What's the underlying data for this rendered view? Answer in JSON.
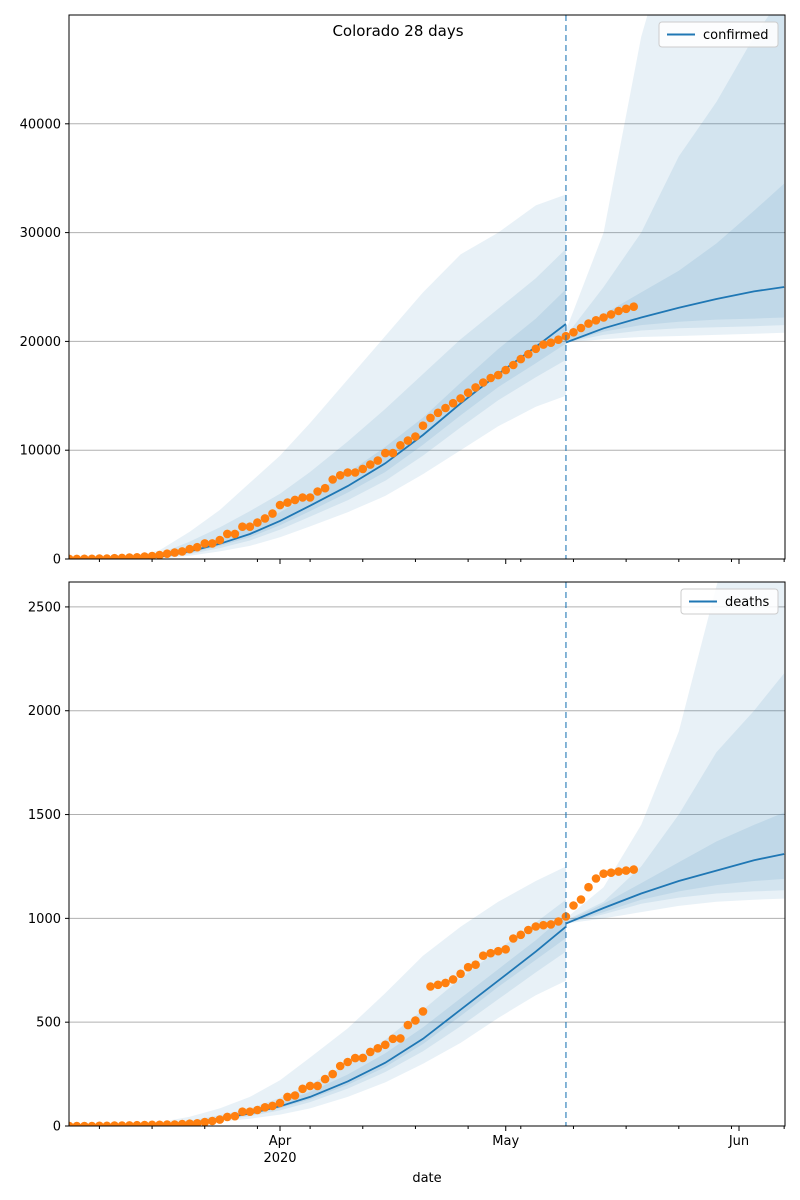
{
  "chart_data": [
    {
      "type": "line",
      "title": "Colorado 28 days",
      "xlabel": "",
      "ylabel": "",
      "ylim": [
        0,
        50000
      ],
      "yticks": [
        0,
        10000,
        20000,
        30000,
        40000
      ],
      "ytick_labels": [
        "0",
        "10000",
        "20000",
        "30000",
        "40000"
      ],
      "grid": "horizontal",
      "legend": {
        "placement": "top-right",
        "entries": [
          "confirmed"
        ]
      },
      "forecast_start": "2020-05-09",
      "colors": {
        "line": "#1f77b4",
        "points": "#ff7f0e",
        "band": "#1f77b4"
      },
      "fit": {
        "x": [
          "2020-03-01",
          "2020-03-12",
          "2020-03-16",
          "2020-03-20",
          "2020-03-24",
          "2020-03-28",
          "2020-04-01",
          "2020-04-05",
          "2020-04-10",
          "2020-04-15",
          "2020-04-20",
          "2020-04-25",
          "2020-04-30",
          "2020-05-05",
          "2020-05-09"
        ],
        "y": [
          0,
          0,
          200,
          700,
          1400,
          2300,
          3500,
          4900,
          6700,
          8800,
          11400,
          14300,
          17000,
          19500,
          21600
        ]
      },
      "forecast": {
        "x": [
          "2020-05-09",
          "2020-05-14",
          "2020-05-19",
          "2020-05-24",
          "2020-05-29",
          "2020-06-03",
          "2020-06-07"
        ],
        "y": [
          19900,
          21200,
          22200,
          23100,
          23900,
          24600,
          25000
        ]
      },
      "bands": [
        {
          "x": [
            "2020-03-01",
            "2020-03-12",
            "2020-03-16",
            "2020-03-20",
            "2020-03-24",
            "2020-03-28",
            "2020-04-01",
            "2020-04-05",
            "2020-04-10",
            "2020-04-15",
            "2020-04-20",
            "2020-04-25",
            "2020-04-30",
            "2020-05-05",
            "2020-05-09"
          ],
          "lo": [
            0,
            0,
            50,
            300,
            700,
            1200,
            2000,
            3000,
            4300,
            5800,
            7800,
            10000,
            12200,
            14000,
            15000
          ],
          "hi": [
            0,
            100,
            800,
            2500,
            4500,
            7000,
            9500,
            12500,
            16500,
            20500,
            24500,
            28000,
            30000,
            32500,
            33500
          ]
        },
        {
          "x": [
            "2020-03-01",
            "2020-03-12",
            "2020-03-16",
            "2020-03-20",
            "2020-03-24",
            "2020-03-28",
            "2020-04-01",
            "2020-04-05",
            "2020-04-10",
            "2020-04-15",
            "2020-04-20",
            "2020-04-25",
            "2020-04-30",
            "2020-05-05",
            "2020-05-09"
          ],
          "lo": [
            0,
            0,
            100,
            450,
            1000,
            1700,
            2700,
            3900,
            5400,
            7200,
            9500,
            12100,
            14600,
            16700,
            18300
          ],
          "hi": [
            0,
            50,
            500,
            1600,
            2900,
            4400,
            6000,
            8000,
            10800,
            13800,
            17000,
            20200,
            23000,
            25800,
            28500
          ]
        },
        {
          "x": [
            "2020-03-01",
            "2020-03-12",
            "2020-03-16",
            "2020-03-20",
            "2020-03-24",
            "2020-03-28",
            "2020-04-01",
            "2020-04-05",
            "2020-04-10",
            "2020-04-15",
            "2020-04-20",
            "2020-04-25",
            "2020-04-30",
            "2020-05-05",
            "2020-05-09"
          ],
          "lo": [
            0,
            0,
            150,
            550,
            1200,
            2000,
            3100,
            4400,
            6100,
            8000,
            10500,
            13200,
            15800,
            18000,
            19800
          ],
          "hi": [
            0,
            20,
            300,
            1000,
            1900,
            3000,
            4300,
            5900,
            7900,
            10300,
            13000,
            16200,
            19300,
            22100,
            24800
          ]
        },
        {
          "x": [
            "2020-05-09",
            "2020-05-14",
            "2020-05-19",
            "2020-05-24",
            "2020-05-29",
            "2020-06-03",
            "2020-06-07"
          ],
          "lo": [
            19900,
            20200,
            20400,
            20500,
            20600,
            20700,
            20800
          ],
          "hi": [
            21000,
            30000,
            48000,
            60000,
            70000,
            80000,
            85000
          ]
        },
        {
          "x": [
            "2020-05-09",
            "2020-05-14",
            "2020-05-19",
            "2020-05-24",
            "2020-05-29",
            "2020-06-03",
            "2020-06-07"
          ],
          "lo": [
            19900,
            20600,
            21000,
            21200,
            21300,
            21400,
            21500
          ],
          "hi": [
            20500,
            25000,
            30000,
            37000,
            42000,
            48000,
            52000
          ]
        },
        {
          "x": [
            "2020-05-09",
            "2020-05-14",
            "2020-05-19",
            "2020-05-24",
            "2020-05-29",
            "2020-06-03",
            "2020-06-07"
          ],
          "lo": [
            19900,
            20900,
            21500,
            21800,
            22000,
            22100,
            22200
          ],
          "hi": [
            20200,
            22500,
            24500,
            26500,
            29000,
            32000,
            34500
          ]
        }
      ],
      "observed": {
        "x": [
          "2020-03-01",
          "2020-03-02",
          "2020-03-03",
          "2020-03-04",
          "2020-03-05",
          "2020-03-06",
          "2020-03-07",
          "2020-03-08",
          "2020-03-09",
          "2020-03-10",
          "2020-03-11",
          "2020-03-12",
          "2020-03-13",
          "2020-03-14",
          "2020-03-15",
          "2020-03-16",
          "2020-03-17",
          "2020-03-18",
          "2020-03-19",
          "2020-03-20",
          "2020-03-21",
          "2020-03-22",
          "2020-03-23",
          "2020-03-24",
          "2020-03-25",
          "2020-03-26",
          "2020-03-27",
          "2020-03-28",
          "2020-03-29",
          "2020-03-30",
          "2020-03-31",
          "2020-04-01",
          "2020-04-02",
          "2020-04-03",
          "2020-04-04",
          "2020-04-05",
          "2020-04-06",
          "2020-04-07",
          "2020-04-08",
          "2020-04-09",
          "2020-04-10",
          "2020-04-11",
          "2020-04-12",
          "2020-04-13",
          "2020-04-14",
          "2020-04-15",
          "2020-04-16",
          "2020-04-17",
          "2020-04-18",
          "2020-04-19",
          "2020-04-20",
          "2020-04-21",
          "2020-04-22",
          "2020-04-23",
          "2020-04-24",
          "2020-04-25",
          "2020-04-26",
          "2020-04-27",
          "2020-04-28",
          "2020-04-29",
          "2020-04-30",
          "2020-05-01",
          "2020-05-02",
          "2020-05-03",
          "2020-05-04",
          "2020-05-05",
          "2020-05-06",
          "2020-05-07",
          "2020-05-08",
          "2020-05-09",
          "2020-05-10",
          "2020-05-11",
          "2020-05-12",
          "2020-05-13",
          "2020-05-14",
          "2020-05-15",
          "2020-05-16",
          "2020-05-17",
          "2020-05-18"
        ],
        "y": [
          0,
          2,
          4,
          8,
          9,
          17,
          21,
          33,
          45,
          72,
          101,
          131,
          160,
          216,
          277,
          363,
          491,
          586,
          697,
          912,
          1086,
          1430,
          1433,
          1734,
          2307,
          2307,
          2966,
          2966,
          3342,
          3728,
          4173,
          4950,
          5183,
          5429,
          5655,
          5655,
          6202,
          6510,
          7303,
          7691,
          7950,
          7950,
          8280,
          8675,
          9047,
          9730,
          9730,
          10447,
          10878,
          11262,
          12256,
          12968,
          13441,
          13879,
          14316,
          14758,
          15284,
          15768,
          16225,
          16635,
          16907,
          17364,
          17830,
          18371,
          18827,
          19316,
          19703,
          19879,
          20157,
          20475,
          20838,
          21232,
          21633,
          21938,
          22200,
          22482,
          22797,
          23000,
          23191
        ]
      }
    },
    {
      "type": "line",
      "title": "",
      "xlabel": "date",
      "ylabel": "",
      "ylim": [
        0,
        2620
      ],
      "yticks": [
        0,
        500,
        1000,
        1500,
        2000,
        2500
      ],
      "ytick_labels": [
        "0",
        "500",
        "1000",
        "1500",
        "2000",
        "2500"
      ],
      "xticks": [
        "2020-04-01",
        "2020-05-01",
        "2020-06-01"
      ],
      "xtick_labels": [
        "Apr\n2020",
        "May",
        "Jun"
      ],
      "grid": "horizontal",
      "legend": {
        "placement": "top-right",
        "entries": [
          "deaths"
        ]
      },
      "forecast_start": "2020-05-09",
      "colors": {
        "line": "#1f77b4",
        "points": "#ff7f0e",
        "band": "#1f77b4"
      },
      "fit": {
        "x": [
          "2020-03-01",
          "2020-03-12",
          "2020-03-16",
          "2020-03-20",
          "2020-03-24",
          "2020-03-28",
          "2020-04-01",
          "2020-04-05",
          "2020-04-10",
          "2020-04-15",
          "2020-04-20",
          "2020-04-25",
          "2020-04-30",
          "2020-05-05",
          "2020-05-09"
        ],
        "y": [
          0,
          2,
          6,
          15,
          35,
          60,
          95,
          140,
          215,
          305,
          420,
          560,
          700,
          840,
          960
        ]
      },
      "forecast": {
        "x": [
          "2020-05-09",
          "2020-05-14",
          "2020-05-19",
          "2020-05-24",
          "2020-05-29",
          "2020-06-03",
          "2020-06-07"
        ],
        "y": [
          975,
          1050,
          1120,
          1180,
          1230,
          1280,
          1310
        ]
      },
      "bands": [
        {
          "x": [
            "2020-03-01",
            "2020-03-12",
            "2020-03-16",
            "2020-03-20",
            "2020-03-24",
            "2020-03-28",
            "2020-04-01",
            "2020-04-05",
            "2020-04-10",
            "2020-04-15",
            "2020-04-20",
            "2020-04-25",
            "2020-04-30",
            "2020-05-05",
            "2020-05-09"
          ],
          "lo": [
            0,
            0,
            2,
            8,
            20,
            35,
            55,
            85,
            140,
            210,
            300,
            400,
            520,
            630,
            700
          ],
          "hi": [
            0,
            5,
            18,
            45,
            85,
            140,
            220,
            330,
            470,
            640,
            820,
            960,
            1080,
            1180,
            1250
          ]
        },
        {
          "x": [
            "2020-03-01",
            "2020-03-12",
            "2020-03-16",
            "2020-03-20",
            "2020-03-24",
            "2020-03-28",
            "2020-04-01",
            "2020-04-05",
            "2020-04-10",
            "2020-04-15",
            "2020-04-20",
            "2020-04-25",
            "2020-04-30",
            "2020-05-05",
            "2020-05-09"
          ],
          "lo": [
            0,
            1,
            4,
            11,
            27,
            47,
            75,
            115,
            180,
            260,
            360,
            480,
            610,
            740,
            840
          ],
          "hi": [
            0,
            3,
            10,
            25,
            52,
            85,
            135,
            200,
            300,
            415,
            560,
            710,
            850,
            980,
            1090
          ]
        },
        {
          "x": [
            "2020-03-01",
            "2020-03-12",
            "2020-03-16",
            "2020-03-20",
            "2020-03-24",
            "2020-03-28",
            "2020-04-01",
            "2020-04-05",
            "2020-04-10",
            "2020-04-15",
            "2020-04-20",
            "2020-04-25",
            "2020-04-30",
            "2020-05-05",
            "2020-05-09"
          ],
          "lo": [
            0,
            1,
            5,
            13,
            31,
            54,
            86,
            128,
            198,
            284,
            395,
            530,
            670,
            800,
            905
          ],
          "hi": [
            0,
            2,
            8,
            19,
            42,
            70,
            112,
            165,
            248,
            350,
            475,
            615,
            755,
            895,
            1020
          ]
        },
        {
          "x": [
            "2020-05-09",
            "2020-05-14",
            "2020-05-19",
            "2020-05-24",
            "2020-05-29",
            "2020-06-03",
            "2020-06-07"
          ],
          "lo": [
            975,
            1000,
            1030,
            1060,
            1080,
            1090,
            1095
          ],
          "hi": [
            1000,
            1150,
            1450,
            1900,
            2600,
            3200,
            3600
          ]
        },
        {
          "x": [
            "2020-05-09",
            "2020-05-14",
            "2020-05-19",
            "2020-05-24",
            "2020-05-29",
            "2020-06-03",
            "2020-06-07"
          ],
          "lo": [
            975,
            1020,
            1070,
            1100,
            1120,
            1130,
            1135
          ],
          "hi": [
            990,
            1080,
            1250,
            1500,
            1800,
            2000,
            2180
          ]
        },
        {
          "x": [
            "2020-05-09",
            "2020-05-14",
            "2020-05-19",
            "2020-05-24",
            "2020-05-29",
            "2020-06-03",
            "2020-06-07"
          ],
          "lo": [
            975,
            1030,
            1090,
            1130,
            1160,
            1180,
            1190
          ],
          "hi": [
            985,
            1070,
            1170,
            1270,
            1370,
            1450,
            1510
          ]
        }
      ],
      "observed": {
        "x": [
          "2020-03-01",
          "2020-03-02",
          "2020-03-03",
          "2020-03-04",
          "2020-03-05",
          "2020-03-06",
          "2020-03-07",
          "2020-03-08",
          "2020-03-09",
          "2020-03-10",
          "2020-03-11",
          "2020-03-12",
          "2020-03-13",
          "2020-03-14",
          "2020-03-15",
          "2020-03-16",
          "2020-03-17",
          "2020-03-18",
          "2020-03-19",
          "2020-03-20",
          "2020-03-21",
          "2020-03-22",
          "2020-03-23",
          "2020-03-24",
          "2020-03-25",
          "2020-03-26",
          "2020-03-27",
          "2020-03-28",
          "2020-03-29",
          "2020-03-30",
          "2020-03-31",
          "2020-04-01",
          "2020-04-02",
          "2020-04-03",
          "2020-04-04",
          "2020-04-05",
          "2020-04-06",
          "2020-04-07",
          "2020-04-08",
          "2020-04-09",
          "2020-04-10",
          "2020-04-11",
          "2020-04-12",
          "2020-04-13",
          "2020-04-14",
          "2020-04-15",
          "2020-04-16",
          "2020-04-17",
          "2020-04-18",
          "2020-04-19",
          "2020-04-20",
          "2020-04-21",
          "2020-04-22",
          "2020-04-23",
          "2020-04-24",
          "2020-04-25",
          "2020-04-26",
          "2020-04-27",
          "2020-04-28",
          "2020-04-29",
          "2020-04-30",
          "2020-05-01",
          "2020-05-02",
          "2020-05-03",
          "2020-05-04",
          "2020-05-05",
          "2020-05-06",
          "2020-05-07",
          "2020-05-08",
          "2020-05-09",
          "2020-05-10",
          "2020-05-11",
          "2020-05-12",
          "2020-05-13",
          "2020-05-14",
          "2020-05-15",
          "2020-05-16",
          "2020-05-17",
          "2020-05-18"
        ],
        "y": [
          0,
          0,
          0,
          0,
          0,
          0,
          0,
          1,
          1,
          2,
          2,
          3,
          4,
          5,
          6,
          6,
          7,
          7,
          9,
          11,
          13,
          19,
          24,
          31,
          44,
          47,
          69,
          69,
          77,
          90,
          97,
          111,
          140,
          147,
          179,
          193,
          193,
          226,
          250,
          289,
          308,
          327,
          328,
          357,
          374,
          391,
          420,
          422,
          486,
          508,
          552,
          672,
          680,
          689,
          706,
          733,
          765,
          777,
          820,
          832,
          842,
          851,
          903,
          921,
          944,
          961,
          967,
          971,
          985,
          1009,
          1062,
          1091,
          1150,
          1192,
          1215,
          1220,
          1225,
          1230,
          1235
        ]
      }
    }
  ]
}
